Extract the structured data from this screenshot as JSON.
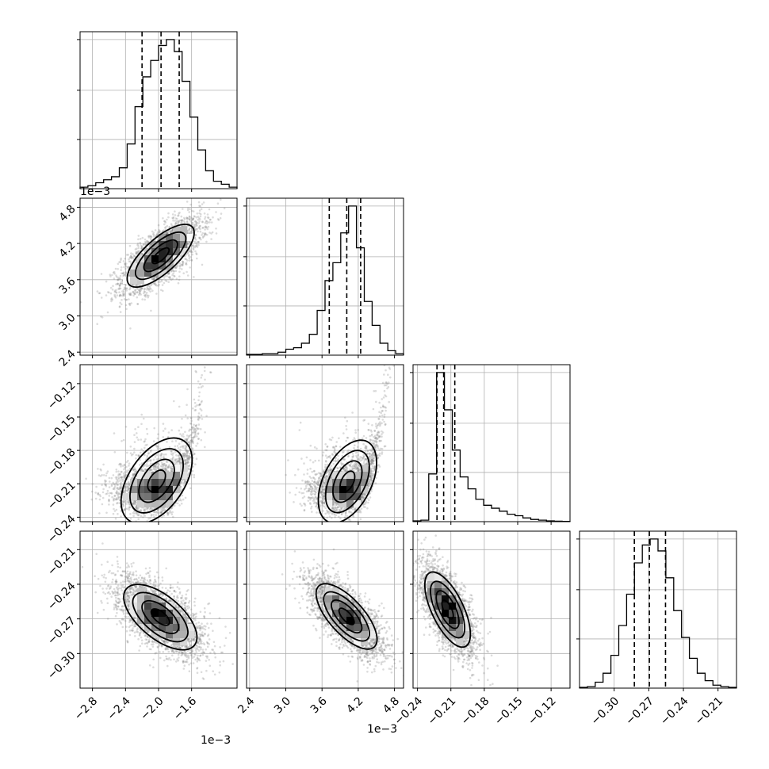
{
  "chart_data": {
    "type": "corner",
    "n_params": 4,
    "axis_ranges": [
      [
        -2.95,
        -1.05
      ],
      [
        2.35,
        4.95
      ],
      [
        -0.244,
        -0.103
      ],
      [
        -0.33,
        -0.194
      ]
    ],
    "ticks": [
      [
        -2.8,
        -2.4,
        -2.0,
        -1.6
      ],
      [
        2.4,
        3.0,
        3.6,
        4.2,
        4.8
      ],
      [
        -0.24,
        -0.21,
        -0.18,
        -0.15,
        -0.12
      ],
      [
        -0.3,
        -0.27,
        -0.24,
        -0.21
      ]
    ],
    "tick_labels": [
      [
        "−2.8",
        "−2.4",
        "−2.0",
        "−1.6"
      ],
      [
        "2.4",
        "3.0",
        "3.6",
        "4.2",
        "4.8"
      ],
      [
        "−0.24",
        "−0.21",
        "−0.18",
        "−0.15",
        "−0.12"
      ],
      [
        "−0.30",
        "−0.27",
        "−0.24",
        "−0.21"
      ]
    ],
    "offset_text": [
      "1e−3",
      "1e−3",
      "",
      ""
    ],
    "quantiles": [
      [
        -2.2,
        -1.97,
        -1.75
      ],
      [
        3.72,
        4.01,
        4.24
      ],
      [
        -0.2225,
        -0.2165,
        -0.2065
      ],
      [
        -0.2825,
        -0.2695,
        -0.2555
      ]
    ],
    "histograms": [
      [
        0.01,
        0.02,
        0.04,
        0.06,
        0.08,
        0.14,
        0.3,
        0.55,
        0.75,
        0.86,
        0.96,
        1.0,
        0.92,
        0.72,
        0.48,
        0.26,
        0.12,
        0.05,
        0.03,
        0.01
      ],
      [
        0.005,
        0.005,
        0.01,
        0.01,
        0.02,
        0.04,
        0.05,
        0.08,
        0.14,
        0.3,
        0.5,
        0.62,
        0.82,
        1.0,
        0.72,
        0.36,
        0.2,
        0.08,
        0.03,
        0.01
      ],
      [
        0.005,
        0.01,
        0.32,
        1.0,
        0.75,
        0.48,
        0.3,
        0.22,
        0.15,
        0.11,
        0.09,
        0.07,
        0.05,
        0.04,
        0.025,
        0.015,
        0.01,
        0.005,
        0.003,
        0.002
      ],
      [
        0.005,
        0.01,
        0.04,
        0.1,
        0.22,
        0.42,
        0.63,
        0.84,
        0.96,
        1.0,
        0.92,
        0.74,
        0.52,
        0.34,
        0.2,
        0.1,
        0.05,
        0.02,
        0.01,
        0.005
      ]
    ],
    "pairs": [
      {
        "xi": 0,
        "yi": 1,
        "kind": "gauss",
        "mean": [
          -1.97,
          4.0
        ],
        "sd": [
          0.24,
          0.3
        ],
        "rho": 0.72
      },
      {
        "xi": 0,
        "yi": 2,
        "kind": "banana",
        "mean": [
          -2.02,
          -0.216
        ],
        "sd": [
          0.25,
          0.01
        ],
        "bend": 0.035,
        "bendpow": 2.6,
        "tail": 1.2
      },
      {
        "xi": 1,
        "yi": 2,
        "kind": "banana",
        "mean": [
          4.02,
          -0.216
        ],
        "sd": [
          0.28,
          0.01
        ],
        "bend": 0.03,
        "bendpow": 2.6,
        "tail": 1.0
      },
      {
        "xi": 0,
        "yi": 3,
        "kind": "gauss",
        "mean": [
          -1.98,
          -0.268
        ],
        "sd": [
          0.26,
          0.017
        ],
        "rho": -0.62
      },
      {
        "xi": 1,
        "yi": 3,
        "kind": "gauss",
        "mean": [
          4.0,
          -0.268
        ],
        "sd": [
          0.3,
          0.017
        ],
        "rho": -0.72
      },
      {
        "xi": 2,
        "yi": 3,
        "kind": "gauss",
        "mean": [
          -0.213,
          -0.262
        ],
        "sd": [
          0.012,
          0.019
        ],
        "rho": -0.65
      }
    ]
  }
}
